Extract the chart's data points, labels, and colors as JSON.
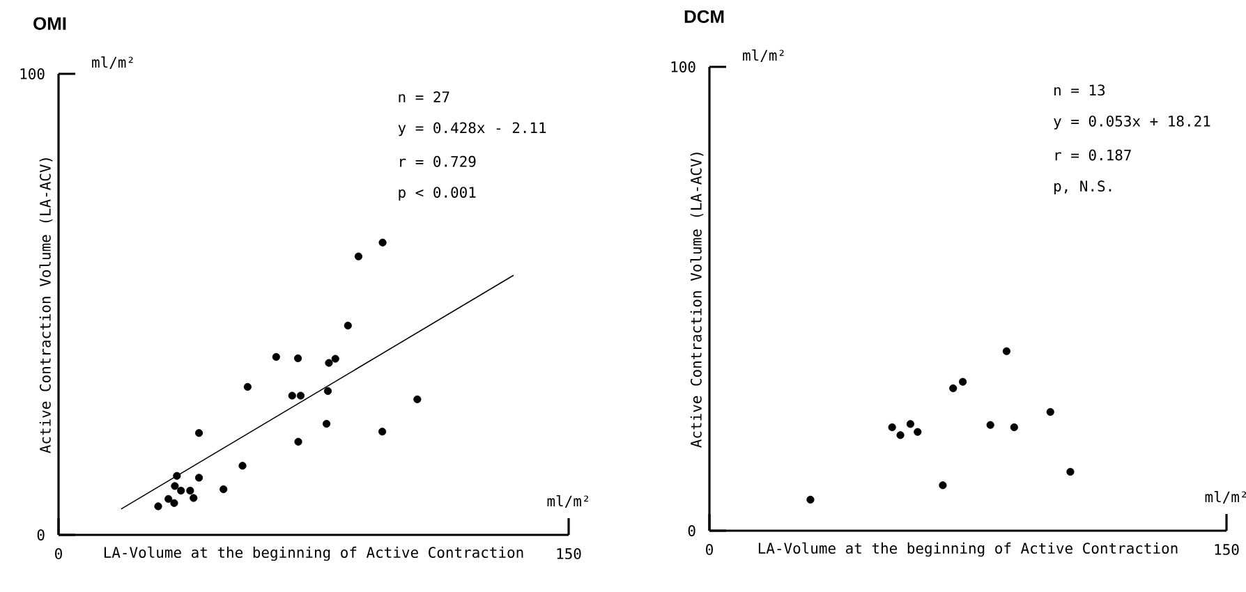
{
  "chart_data": [
    {
      "type": "scatter",
      "title": "OMI",
      "xlabel": "LA-Volume at the beginning of Active Contraction",
      "ylabel": "Active Contraction Volume (LA-ACV)",
      "annotations": [
        "n = 27",
        "y = 0.428x - 2.11",
        "r = 0.729",
        "p < 0.001",
        "ml/m²",
        "ml/m²"
      ],
      "xlim": [
        0,
        150
      ],
      "ylim": [
        0,
        100
      ],
      "xticks": [
        0,
        150
      ],
      "yticks": [
        0,
        100
      ],
      "marker": "circle",
      "series": [
        {
          "color": "#000000",
          "x": [
            29.3,
            32.3,
            34.0,
            34.2,
            34.8,
            36.0,
            38.7,
            39.7,
            41.3,
            41.3,
            48.5,
            54.1,
            55.6,
            64.0,
            68.7,
            71.2,
            70.4,
            70.5,
            78.8,
            79.2,
            79.5,
            81.4,
            85.1,
            88.2,
            95.2,
            95.3,
            105.5
          ],
          "values": [
            6.2,
            7.8,
            6.9,
            10.6,
            12.8,
            9.6,
            9.6,
            8.0,
            22.1,
            12.4,
            9.9,
            15.0,
            32.1,
            38.6,
            30.2,
            30.2,
            38.3,
            20.2,
            24.1,
            31.2,
            37.3,
            38.2,
            45.4,
            60.4,
            22.4,
            63.4,
            29.4
          ]
        },
        {
          "type": "line",
          "color": "#000000",
          "marker": "none",
          "x": [
            18.4,
            133.8
          ],
          "values": [
            5.6,
            56.3
          ]
        }
      ]
    },
    {
      "type": "scatter",
      "title": "DCM",
      "xlabel": "LA-Volume at the beginning of Active Contraction",
      "ylabel": "Active Contraction Volume (LA-ACV)",
      "annotations": [
        "n = 13",
        "y = 0.053x + 18.21",
        "r = 0.187",
        "p, N.S.",
        "ml/m²",
        "ml/m²"
      ],
      "xlim": [
        0,
        150
      ],
      "ylim": [
        0,
        100
      ],
      "xticks": [
        0,
        150
      ],
      "yticks": [
        0,
        100
      ],
      "marker": "circle",
      "series": [
        {
          "color": "#000000",
          "x": [
            29.3,
            53.0,
            55.4,
            58.3,
            60.4,
            67.7,
            70.7,
            73.5,
            81.5,
            86.2,
            88.4,
            98.9,
            104.7
          ],
          "values": [
            6.7,
            22.3,
            20.6,
            23.0,
            21.3,
            9.8,
            30.7,
            32.1,
            22.8,
            38.7,
            22.3,
            25.6,
            12.7
          ]
        }
      ]
    }
  ]
}
